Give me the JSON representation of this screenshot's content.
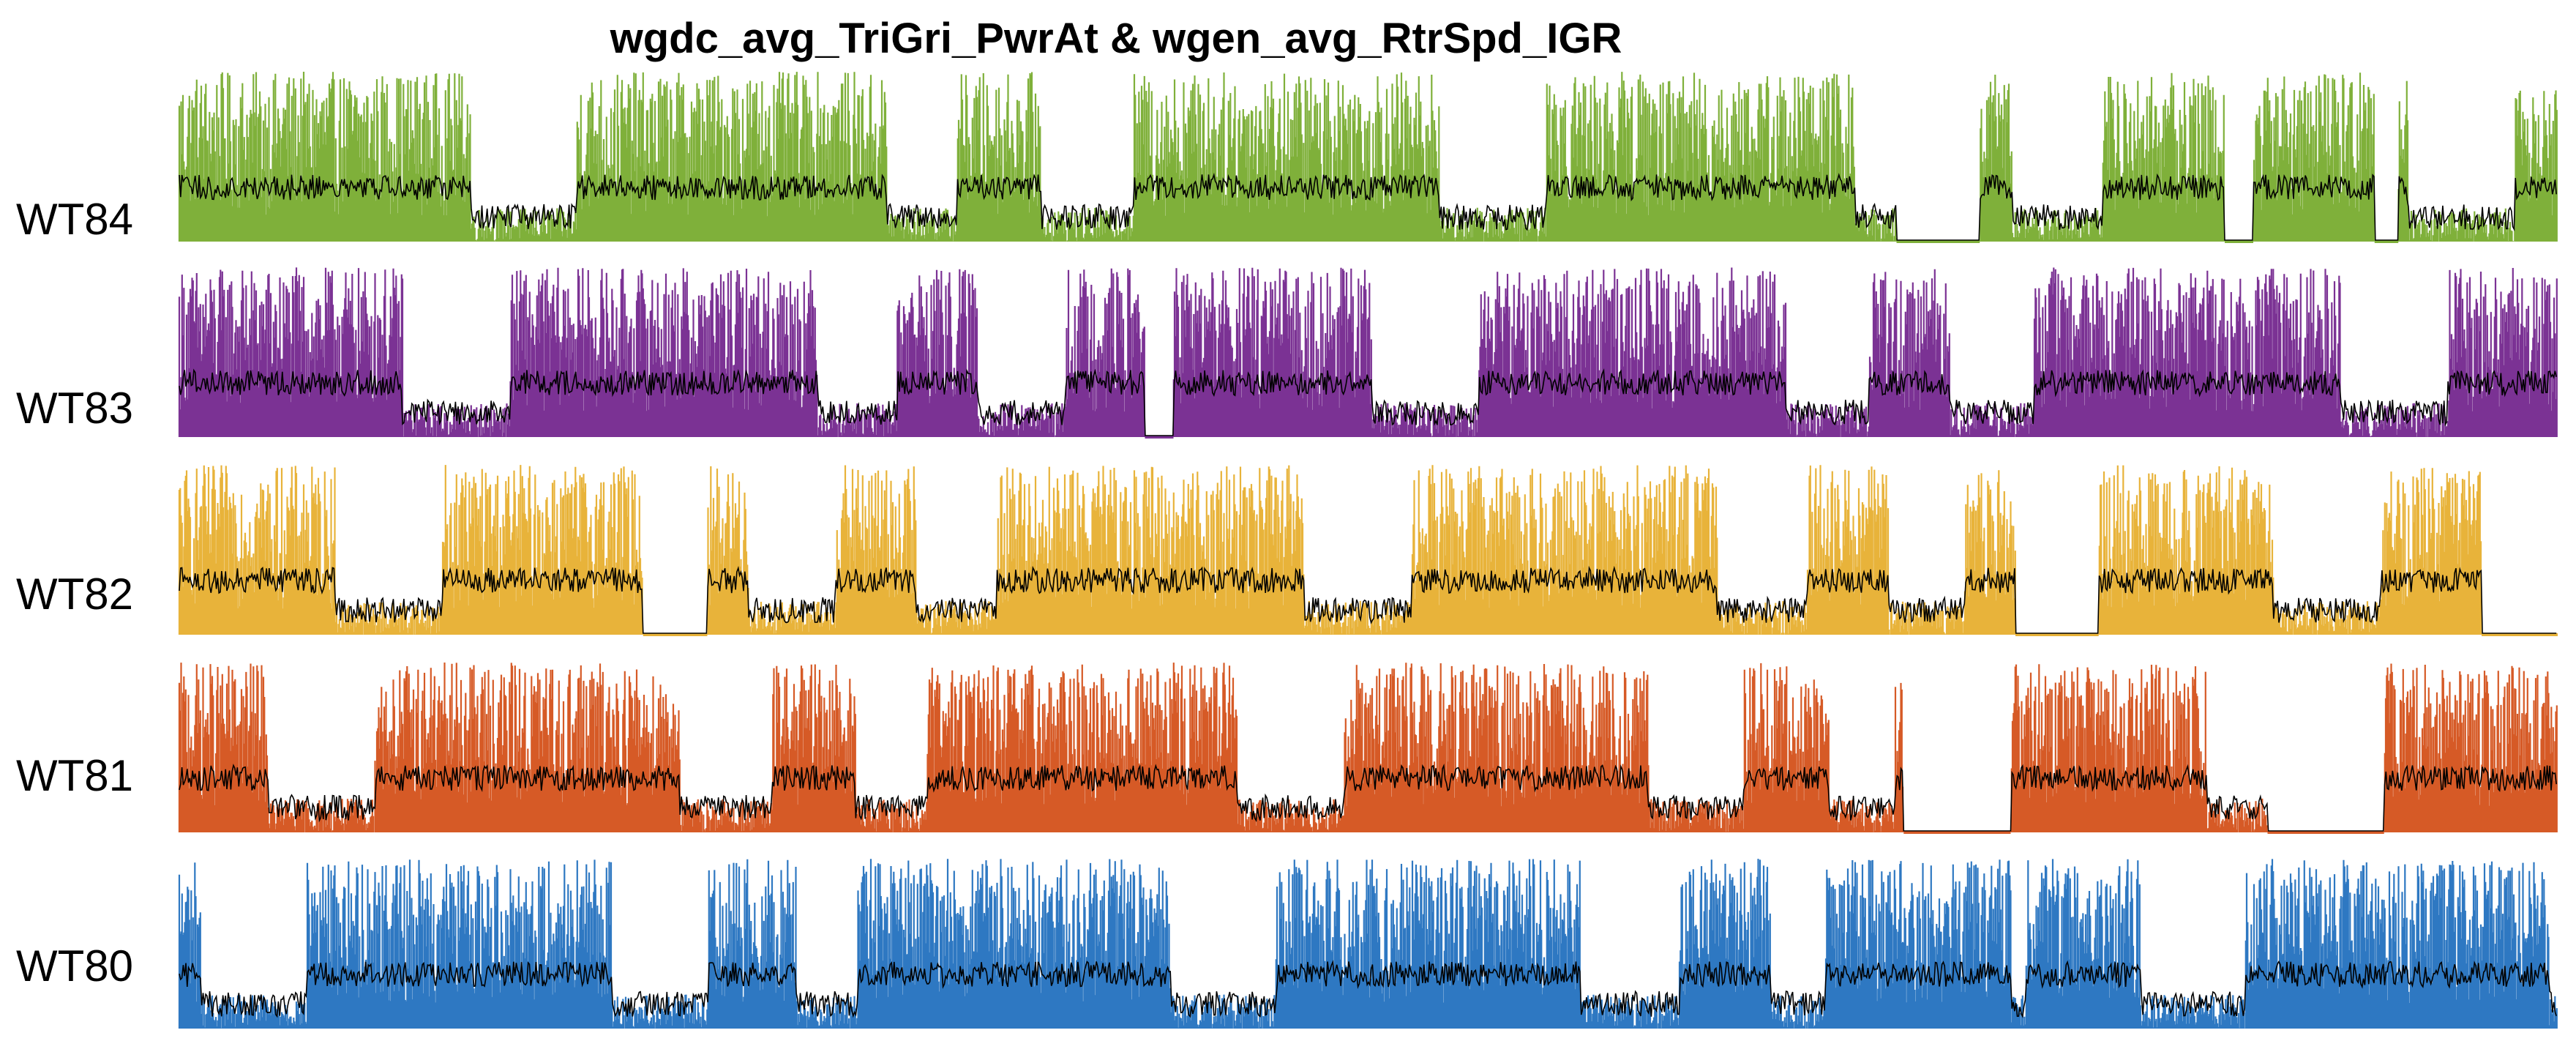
{
  "chart_data": {
    "type": "scatter",
    "title": "wgdc_avg_TriGri_PwrAt & wgen_avg_RtrSpd_IGR",
    "xlabel": "",
    "ylabel": "",
    "grid": false,
    "legend": "none",
    "overlay_color": "#000000",
    "series": [
      {
        "name": "WT84",
        "color": "#7FB03A",
        "gaps": [
          [
            0.722,
            0.757
          ],
          [
            0.86,
            0.872
          ],
          [
            0.923,
            0.933
          ]
        ]
      },
      {
        "name": "WT83",
        "color": "#7B3294",
        "gaps": [
          [
            0.406,
            0.418
          ]
        ]
      },
      {
        "name": "WT82",
        "color": "#E8B33A",
        "gaps": [
          [
            0.195,
            0.222
          ],
          [
            0.772,
            0.807
          ],
          [
            0.968,
            1.0
          ]
        ]
      },
      {
        "name": "WT81",
        "color": "#D65A26",
        "gaps": [
          [
            0.725,
            0.77
          ],
          [
            0.878,
            0.927
          ]
        ]
      },
      {
        "name": "WT80",
        "color": "#2E78C2",
        "gaps": []
      }
    ]
  }
}
